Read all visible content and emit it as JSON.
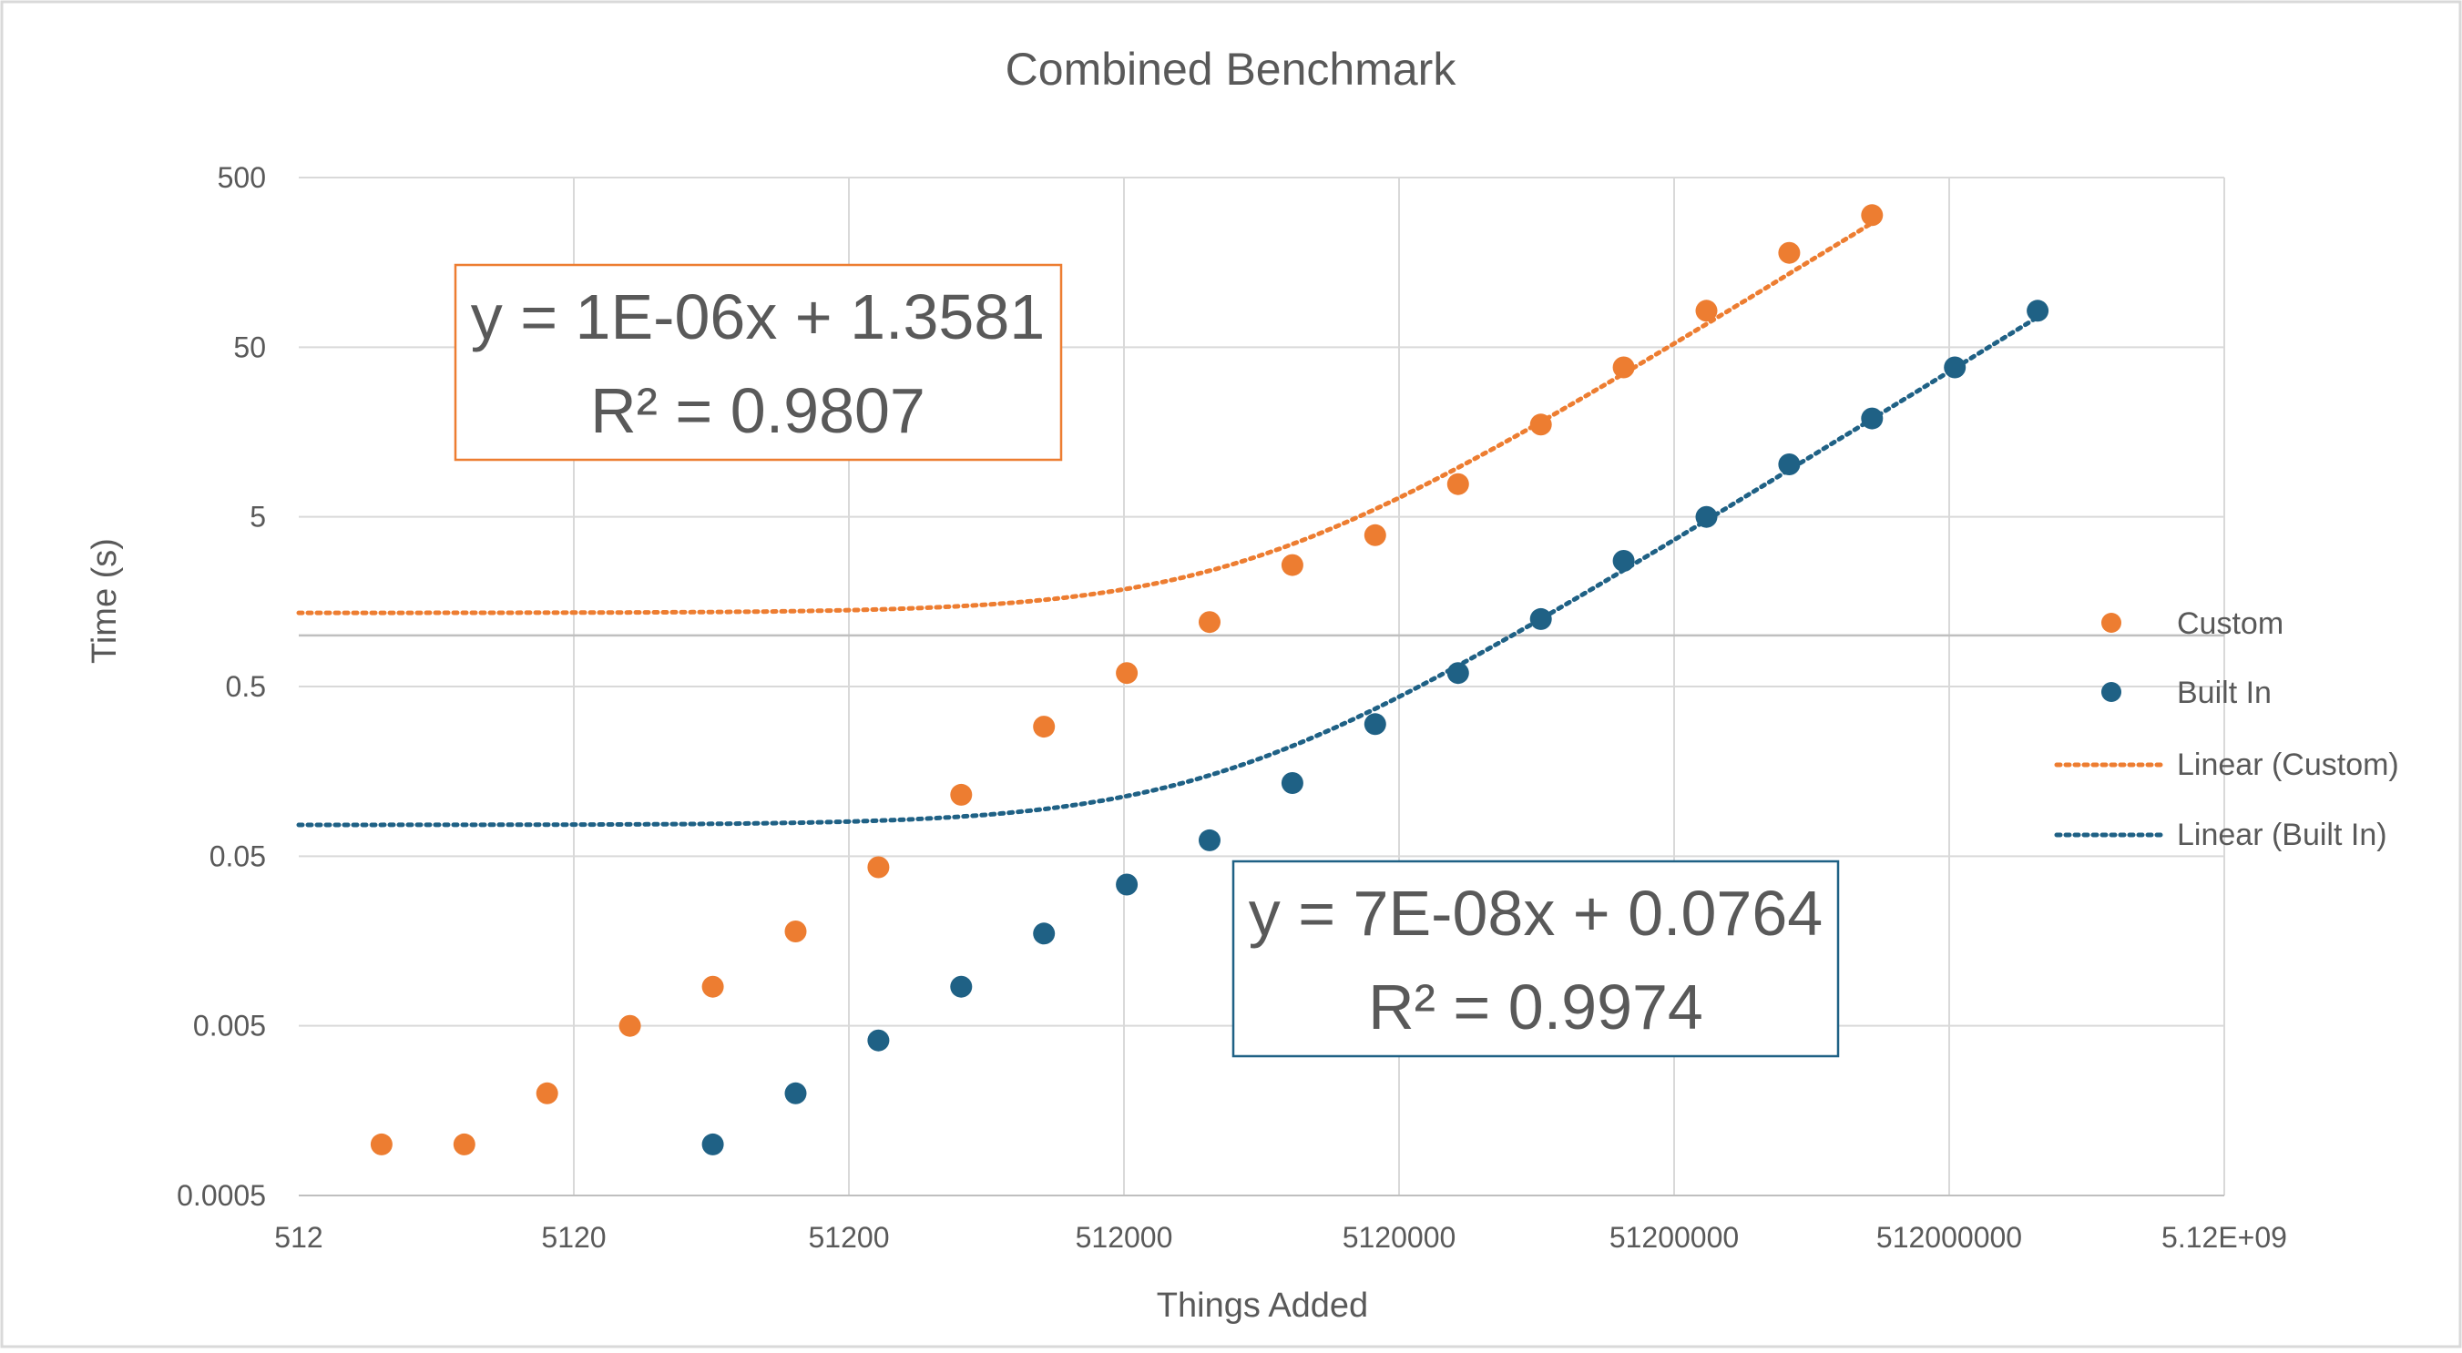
{
  "chart_data": {
    "type": "scatter",
    "title": "Combined Benchmark",
    "xlabel": "Things Added",
    "ylabel": "Time (s)",
    "x_scale": "log",
    "y_scale": "log",
    "xlim": [
      512,
      5120000000
    ],
    "ylim": [
      0.0005,
      500
    ],
    "x_ticks": [
      "512",
      "5120",
      "51200",
      "512000",
      "5120000",
      "51200000",
      "512000000",
      "5.12E+09"
    ],
    "y_ticks": [
      "0.0005",
      "0.005",
      "0.05",
      "0.5",
      "5",
      "50",
      "500"
    ],
    "grid": true,
    "legend": "right",
    "series": [
      {
        "name": "Custom",
        "color": "#ED7D31",
        "points": [
          [
            1024,
            0.001
          ],
          [
            2048,
            0.001
          ],
          [
            4096,
            0.002
          ],
          [
            8192,
            0.005
          ],
          [
            16384,
            0.0085
          ],
          [
            32768,
            0.018
          ],
          [
            65536,
            0.043
          ],
          [
            131072,
            0.115
          ],
          [
            262144,
            0.29
          ],
          [
            524288,
            0.6
          ],
          [
            1048576,
            1.2
          ],
          [
            2097152,
            2.6
          ],
          [
            4194304,
            3.9
          ],
          [
            8388608,
            7.8
          ],
          [
            16777216,
            17.5
          ],
          [
            33554432,
            38
          ],
          [
            67108864,
            82
          ],
          [
            134217728,
            180
          ],
          [
            268435456,
            300
          ]
        ]
      },
      {
        "name": "Built In",
        "color": "#1F6185",
        "points": [
          [
            16384,
            0.001
          ],
          [
            32768,
            0.002
          ],
          [
            65536,
            0.0041
          ],
          [
            131072,
            0.0085
          ],
          [
            262144,
            0.0175
          ],
          [
            524288,
            0.034
          ],
          [
            1048576,
            0.062
          ],
          [
            2097152,
            0.135
          ],
          [
            4194304,
            0.3
          ],
          [
            8388608,
            0.6
          ],
          [
            16777216,
            1.25
          ],
          [
            33554432,
            2.75
          ],
          [
            67108864,
            5.0
          ],
          [
            134217728,
            10.2
          ],
          [
            268435456,
            19
          ],
          [
            536870912,
            38
          ],
          [
            1073741824,
            82
          ]
        ]
      }
    ],
    "trendlines": [
      {
        "name": "Linear (Custom)",
        "color": "#ED7D31",
        "slope": 1e-06,
        "intercept": 1.3581,
        "equation": "y = 1E-06x + 1.3581",
        "r_squared": "R² = 0.9807",
        "x_range": [
          512,
          268435456
        ]
      },
      {
        "name": "Linear (Built In)",
        "color": "#1F6185",
        "slope": 7e-08,
        "intercept": 0.0764,
        "equation": "y = 7E-08x + 0.0764",
        "r_squared": "R² = 0.9974",
        "x_range": [
          512,
          1073741824
        ]
      }
    ]
  }
}
